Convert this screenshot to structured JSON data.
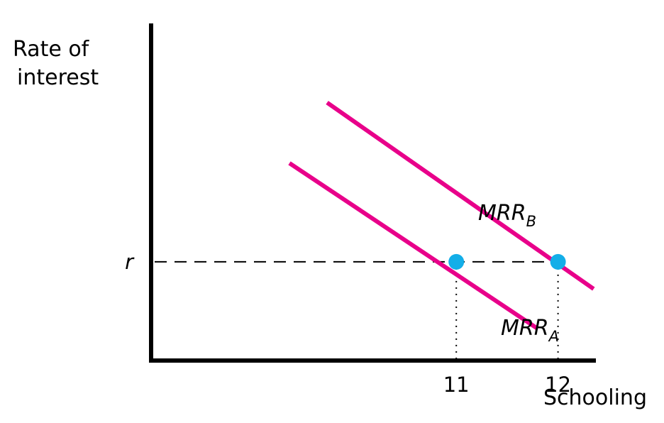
{
  "chart_data": {
    "type": "line",
    "xlabel": "Schooling",
    "ylabel_lines": [
      "Rate of",
      "interest"
    ],
    "x_ticks": [
      "11",
      "12"
    ],
    "y_ticks": [
      "r"
    ],
    "series": [
      {
        "name": "MRR",
        "subscript": "A",
        "x": [
          9.36,
          11.8
        ],
        "y": [
          0.62,
          -0.42
        ]
      },
      {
        "name": "MRR",
        "subscript": "B",
        "x": [
          9.73,
          12.35
        ],
        "y": [
          1.0,
          -0.17
        ]
      }
    ],
    "equilibrium_points": [
      {
        "x": 11,
        "y": 0,
        "label": "11"
      },
      {
        "x": 12,
        "y": 0,
        "label": "12"
      }
    ],
    "reference_line": {
      "label": "r",
      "y": 0,
      "style": "dashed"
    },
    "xlim": [
      8.0,
      13.0
    ],
    "ylim": [
      -0.62,
      1.6
    ],
    "colors": {
      "curves": "#e8008a",
      "points": "#13aee8",
      "axes": "#000000"
    }
  }
}
